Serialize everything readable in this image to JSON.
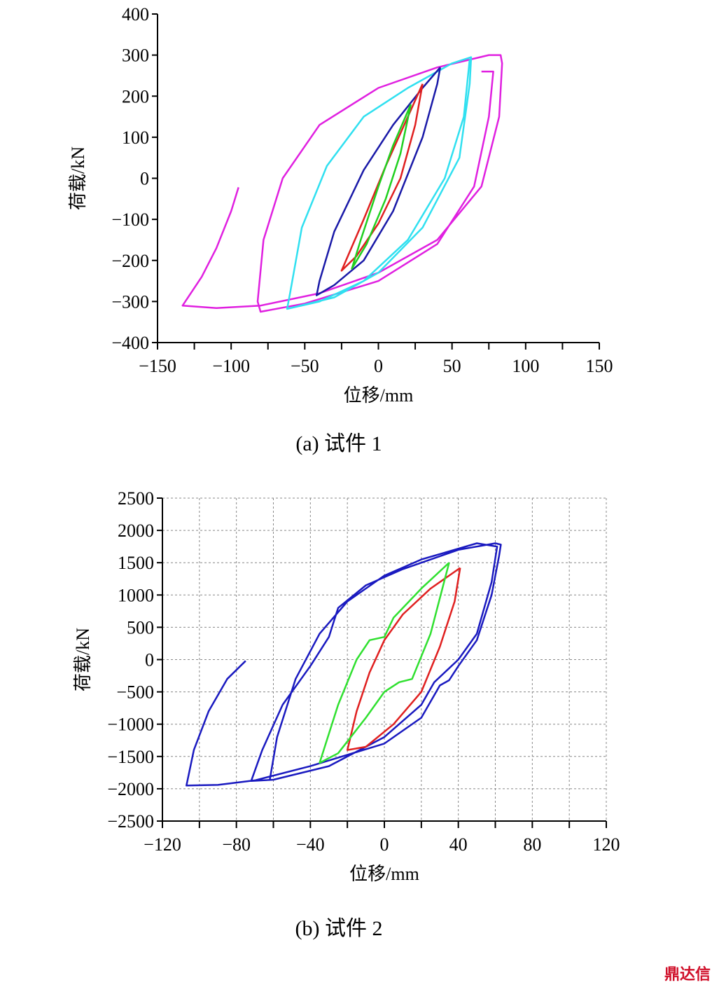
{
  "chart_data": [
    {
      "type": "line",
      "caption": "(a)  试件 1",
      "xlabel": "位移/mm",
      "ylabel": "荷载/kN",
      "xlim": [
        -150,
        150
      ],
      "ylim": [
        -400,
        400
      ],
      "xticks": [
        {
          "value": -150,
          "label": "−150"
        },
        {
          "value": -100,
          "label": "−100"
        },
        {
          "value": -50,
          "label": "−50"
        },
        0,
        50,
        100,
        150
      ],
      "xminor": [
        -125,
        -75,
        -25,
        25,
        75,
        125
      ],
      "yticks": [
        {
          "value": -400,
          "label": "−400"
        },
        {
          "value": -300,
          "label": "−300"
        },
        {
          "value": -200,
          "label": "−200"
        },
        {
          "value": -100,
          "label": "−100"
        },
        0,
        100,
        200,
        300,
        400
      ],
      "grid": false,
      "series": [
        {
          "color": "#e020e0",
          "x": [
            -95,
            -100,
            -110,
            -120,
            -133,
            -110,
            -80,
            -40,
            0,
            40,
            70,
            82,
            84,
            83,
            75,
            40,
            0,
            -40,
            -65,
            -78,
            -82,
            -80,
            -50,
            0,
            40,
            65,
            75,
            78,
            70
          ],
          "values": [
            -22,
            -80,
            -170,
            -240,
            -310,
            -316,
            -310,
            -280,
            -230,
            -150,
            -20,
            150,
            280,
            300,
            300,
            270,
            220,
            130,
            0,
            -150,
            -300,
            -325,
            -305,
            -250,
            -160,
            -20,
            150,
            260,
            260
          ]
        },
        {
          "color": "#30e0f0",
          "x": [
            -62,
            -30,
            0,
            30,
            55,
            62,
            63,
            50,
            20,
            -10,
            -35,
            -52,
            -60,
            -62,
            -40,
            -10,
            20,
            45,
            58,
            62
          ],
          "values": [
            -318,
            -290,
            -230,
            -120,
            50,
            230,
            295,
            280,
            220,
            150,
            30,
            -120,
            -280,
            -318,
            -300,
            -250,
            -150,
            0,
            150,
            290
          ]
        },
        {
          "color": "#1a1aa8",
          "x": [
            42,
            30,
            10,
            -10,
            -30,
            -40,
            -42,
            -30,
            -10,
            10,
            30,
            40,
            42
          ],
          "values": [
            270,
            220,
            130,
            20,
            -130,
            -250,
            -285,
            -260,
            -200,
            -80,
            100,
            230,
            270
          ]
        },
        {
          "color": "#e02020",
          "x": [
            30,
            20,
            5,
            -10,
            -22,
            -25,
            -15,
            0,
            15,
            25,
            30
          ],
          "values": [
            230,
            150,
            30,
            -100,
            -200,
            -225,
            -190,
            -110,
            0,
            130,
            230
          ]
        },
        {
          "color": "#20d020",
          "x": [
            22,
            10,
            0,
            -12,
            -18,
            -8,
            5,
            15,
            22
          ],
          "values": [
            180,
            80,
            -20,
            -150,
            -220,
            -160,
            -50,
            60,
            180
          ]
        }
      ]
    },
    {
      "type": "line",
      "caption": "(b)  试件 2",
      "xlabel": "位移/mm",
      "ylabel": "荷载/kN",
      "xlim": [
        -120,
        120
      ],
      "ylim": [
        -2500,
        2500
      ],
      "xticks": [
        {
          "value": -120,
          "label": "−120"
        },
        {
          "value": -80,
          "label": "−80"
        },
        {
          "value": -40,
          "label": "−40"
        },
        0,
        40,
        80,
        120
      ],
      "xminor": [
        -100,
        -60,
        -20,
        20,
        60,
        100
      ],
      "yticks": [
        {
          "value": -2500,
          "label": "−2500"
        },
        {
          "value": -2000,
          "label": "−2000"
        },
        {
          "value": -1500,
          "label": "−1500"
        },
        {
          "value": -1000,
          "label": "−1000"
        },
        {
          "value": -500,
          "label": "−500"
        },
        0,
        500,
        1000,
        1500,
        2000,
        2500
      ],
      "grid": true,
      "series": [
        {
          "color": "#1a1ac0",
          "x": [
            -75,
            -85,
            -95,
            -103,
            -107,
            -90,
            -70,
            -40,
            0,
            20,
            30,
            35,
            40,
            50,
            58,
            62,
            63,
            60,
            40,
            10,
            -10,
            -25,
            -30,
            -40,
            -55,
            -66,
            -72,
            -60,
            -30,
            0,
            20,
            27,
            40,
            50,
            58,
            61,
            50,
            20,
            0,
            -20,
            -35,
            -48,
            -58,
            -62
          ],
          "values": [
            -20,
            -300,
            -800,
            -1400,
            -1950,
            -1940,
            -1870,
            -1650,
            -1300,
            -900,
            -400,
            -320,
            -100,
            300,
            1000,
            1600,
            1780,
            1800,
            1700,
            1400,
            1150,
            800,
            350,
            -100,
            -700,
            -1400,
            -1880,
            -1860,
            -1650,
            -1200,
            -700,
            -350,
            0,
            400,
            1200,
            1750,
            1800,
            1550,
            1300,
            900,
            400,
            -300,
            -1200,
            -1870
          ]
        },
        {
          "color": "#e02020",
          "x": [
            41,
            35,
            25,
            10,
            0,
            -8,
            -15,
            -20,
            -10,
            5,
            20,
            30,
            38,
            41
          ],
          "values": [
            1420,
            1300,
            1100,
            700,
            300,
            -200,
            -800,
            -1400,
            -1350,
            -1000,
            -500,
            200,
            900,
            1420
          ]
        },
        {
          "color": "#30e030",
          "x": [
            35,
            20,
            5,
            0,
            -8,
            -15,
            -25,
            -35,
            -25,
            -10,
            0,
            8,
            15,
            25,
            35
          ],
          "values": [
            1500,
            1100,
            650,
            350,
            300,
            0,
            -700,
            -1600,
            -1450,
            -900,
            -500,
            -350,
            -300,
            400,
            1500
          ]
        }
      ]
    }
  ],
  "watermark": "鼎达信"
}
